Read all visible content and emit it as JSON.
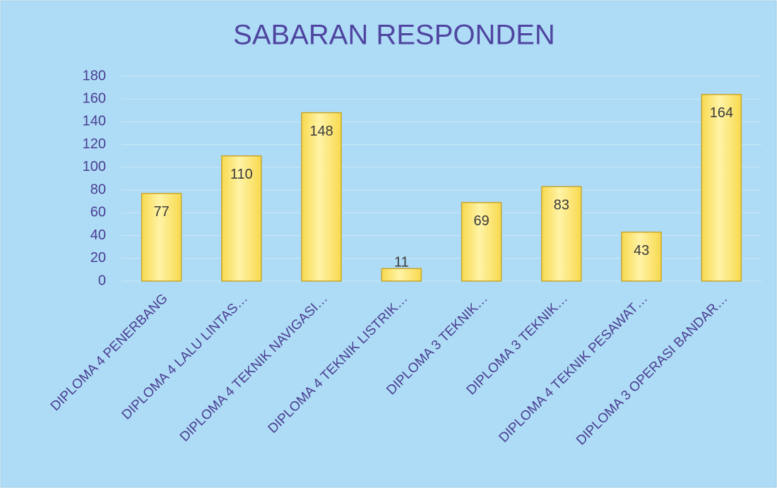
{
  "chart_data": {
    "type": "bar",
    "title": "SABARAN RESPONDEN",
    "categories": [
      "DIPLOMA 4 PENERBANG",
      "DIPLOMA 4 LALU LINTAS…",
      "DIPLOMA 4 TEKNIK NAVIGASI…",
      "DIPLOMA 4 TEKNIK LISTRIK…",
      "DIPLOMA 3 TEKNIK…",
      "DIPLOMA 3 TEKNIK…",
      "DIPLOMA 4 TEKNIK PESAWAT…",
      "DIPLOMA 3 OPERASI BANDAR…"
    ],
    "values": [
      77,
      110,
      148,
      11,
      69,
      83,
      43,
      164
    ],
    "color": "#f8d94e",
    "ylim": [
      0,
      180
    ],
    "yticks": [
      0,
      20,
      40,
      60,
      80,
      100,
      120,
      140,
      160,
      180
    ],
    "grid": true
  }
}
